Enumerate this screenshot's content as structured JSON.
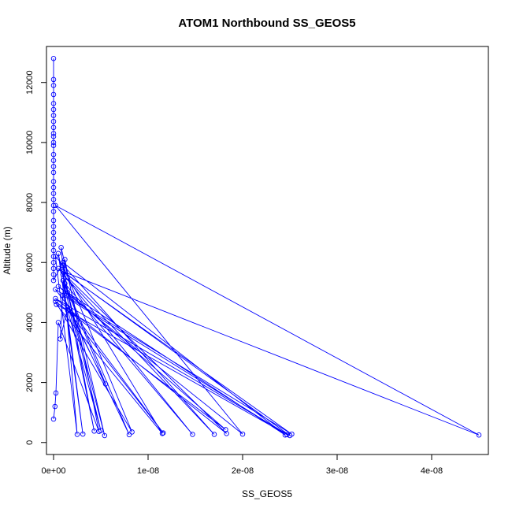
{
  "chart_data": {
    "type": "line",
    "title": "ATOM1 Northbound SS_GEOS5",
    "xlabel": "SS_GEOS5",
    "ylabel": "Altitude (m)",
    "xlim": [
      -7.5e-10,
      4.6e-08
    ],
    "ylim": [
      -400,
      13200
    ],
    "xticks": [
      {
        "value": 0,
        "label": "0e+00"
      },
      {
        "value": 1e-08,
        "label": "1e-08"
      },
      {
        "value": 2e-08,
        "label": "2e-08"
      },
      {
        "value": 3e-08,
        "label": "3e-08"
      },
      {
        "value": 4e-08,
        "label": "4e-08"
      }
    ],
    "yticks": [
      {
        "value": 0,
        "label": "0"
      },
      {
        "value": 2000,
        "label": "2000"
      },
      {
        "value": 4000,
        "label": "4000"
      },
      {
        "value": 6000,
        "label": "6000"
      },
      {
        "value": 8000,
        "label": "8000"
      },
      {
        "value": 10000,
        "label": "10000"
      },
      {
        "value": 12000,
        "label": "12000"
      }
    ],
    "grid": false,
    "legend": "none",
    "series_color": "#0000ff",
    "marker": "open-circle",
    "series": [
      {
        "x": [
          0,
          0,
          0,
          0,
          0,
          0,
          0,
          0,
          0,
          0,
          0,
          0,
          0,
          0,
          0,
          0,
          0,
          0,
          0,
          0,
          0,
          0,
          0,
          0,
          0,
          0,
          0,
          0,
          0,
          0,
          0,
          0,
          0,
          0,
          1e-09,
          2.45e-08,
          5e-10,
          2e-08,
          2e-10,
          4.5e-08,
          1e-09,
          2.5e-08,
          2e-10,
          1.83e-08,
          1.5e-09,
          1.15e-08,
          3e-10,
          2.47e-08,
          1e-09,
          8e-09,
          1.2e-09,
          1.47e-08,
          5e-10,
          2.52e-08,
          2e-10,
          1.16e-08,
          1.5e-09,
          5e-09,
          1e-09,
          1.7e-08,
          2e-10,
          2.5e-09,
          8e-10,
          5.4e-09,
          1.5e-09,
          1.82e-08,
          2e-10,
          8.3e-09,
          1e-09,
          4.3e-09,
          5e-10,
          3.1e-09,
          1e-09,
          5.5e-09,
          1.5e-09,
          7e-10,
          1.2e-09,
          4.8e-09,
          5e-10,
          2.5e-10,
          1.5e-10,
          0
        ],
        "y": [
          12800,
          12100,
          11900,
          11600,
          11300,
          11100,
          10900,
          10700,
          10500,
          10300,
          10200,
          10000,
          9900,
          9600,
          9400,
          9200,
          9000,
          8700,
          8500,
          8300,
          8100,
          7900,
          7700,
          7400,
          7200,
          7000,
          6800,
          6600,
          6400,
          6200,
          6000,
          5800,
          5600,
          5400,
          6000,
          250,
          5200,
          280,
          7900,
          250,
          5700,
          230,
          4800,
          300,
          5500,
          300,
          4600,
          260,
          4900,
          260,
          5300,
          270,
          5800,
          280,
          5100,
          320,
          4400,
          400,
          5600,
          270,
          6200,
          270,
          6500,
          230,
          5000,
          430,
          4700,
          350,
          5900,
          380,
          6300,
          280,
          5400,
          1950,
          4500,
          3450,
          6100,
          370,
          4000,
          1650,
          1200,
          780
        ]
      }
    ]
  }
}
